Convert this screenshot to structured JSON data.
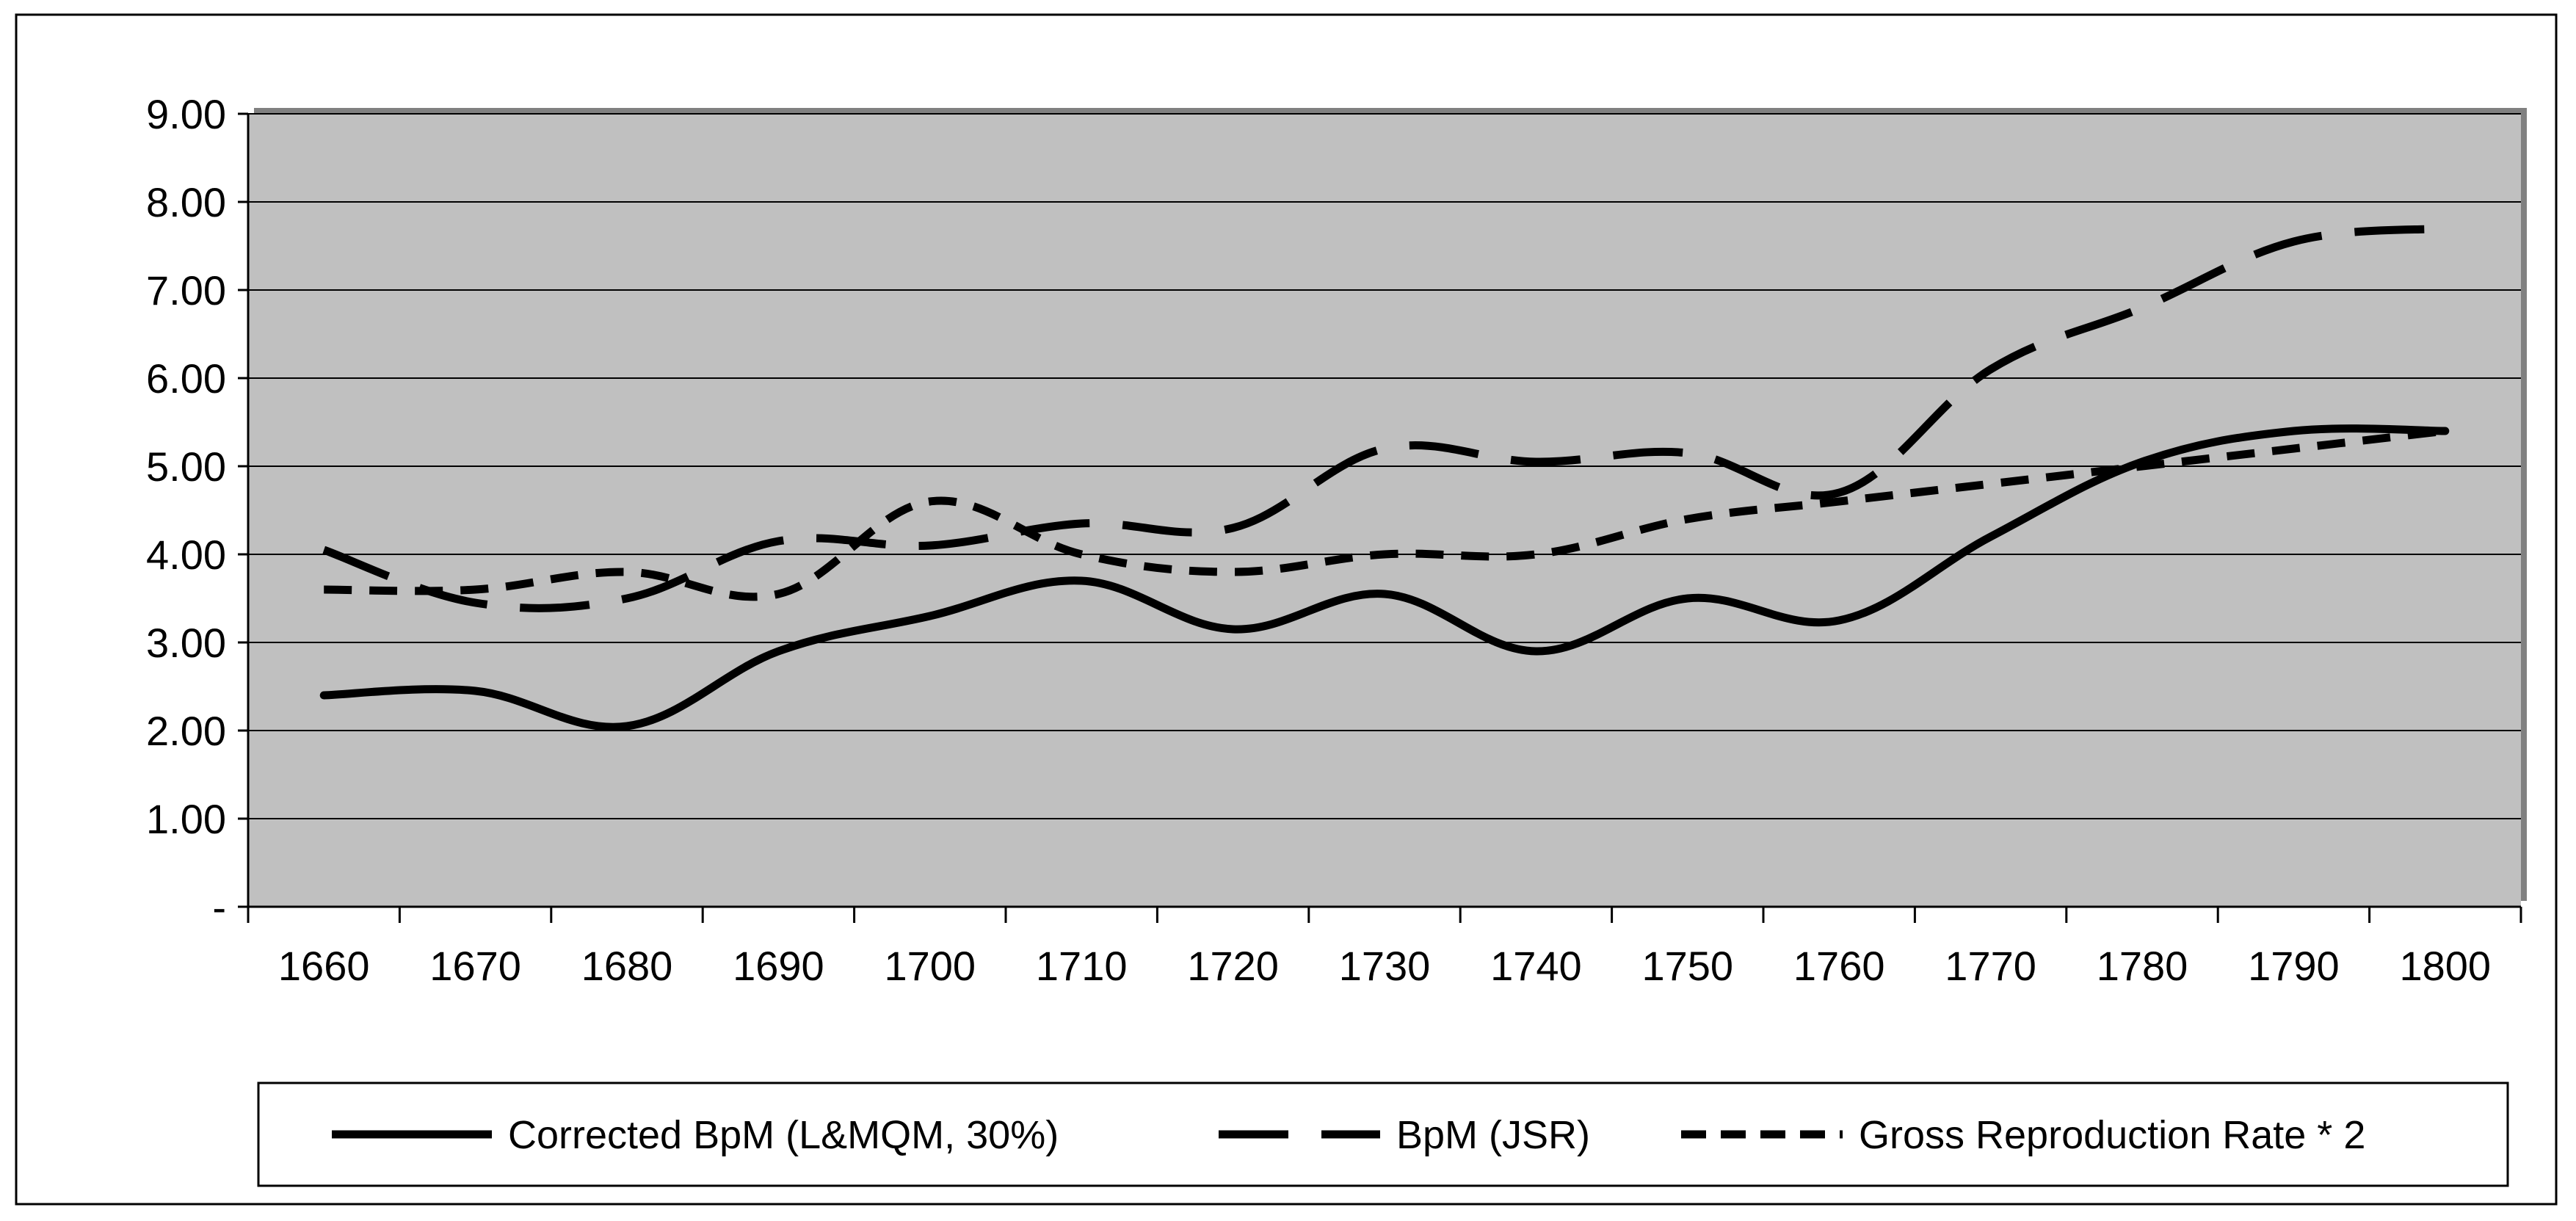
{
  "chart_data": {
    "type": "line",
    "title": "",
    "xlabel": "",
    "ylabel": "",
    "categories": [
      "1660",
      "1670",
      "1680",
      "1690",
      "1700",
      "1710",
      "1720",
      "1730",
      "1740",
      "1750",
      "1760",
      "1770",
      "1780",
      "1790",
      "1800"
    ],
    "ylim": [
      0,
      9
    ],
    "y_ticks": [
      0,
      1,
      2,
      3,
      4,
      5,
      6,
      7,
      8,
      9
    ],
    "y_tick_labels": [
      "-",
      "1.00",
      "2.00",
      "3.00",
      "4.00",
      "5.00",
      "6.00",
      "7.00",
      "8.00",
      "9.00"
    ],
    "grid": true,
    "plot_background": "#c0c0c0",
    "legend_position": "bottom",
    "series": [
      {
        "name": "Corrected BpM (L&MQM, 30%)",
        "style": "solid",
        "color": "#000000",
        "values": [
          2.4,
          2.45,
          2.05,
          2.9,
          3.3,
          3.7,
          3.15,
          3.55,
          2.9,
          3.5,
          3.25,
          4.2,
          5.05,
          5.4,
          5.4
        ]
      },
      {
        "name": "BpM (JSR)",
        "style": "long-dash",
        "color": "#000000",
        "values": [
          4.05,
          3.45,
          3.5,
          4.15,
          4.1,
          4.35,
          4.3,
          5.2,
          5.05,
          5.15,
          4.7,
          6.1,
          6.8,
          7.55,
          7.7
        ]
      },
      {
        "name": "Gross Reproduction Rate * 2",
        "style": "short-dash",
        "color": "#000000",
        "values": [
          3.6,
          3.6,
          3.8,
          3.55,
          4.6,
          4.0,
          3.8,
          4.0,
          4.0,
          4.4,
          4.6,
          4.8,
          5.0,
          5.2,
          5.4
        ]
      }
    ]
  }
}
